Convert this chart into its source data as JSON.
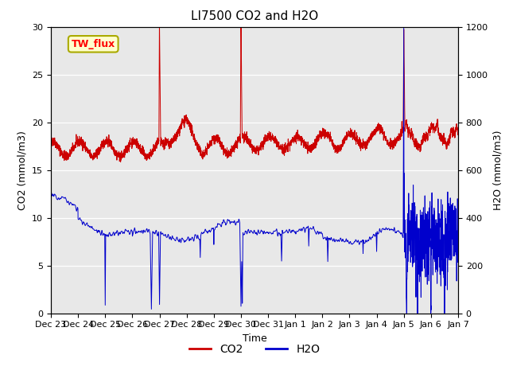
{
  "title": "LI7500 CO2 and H2O",
  "xlabel": "Time",
  "ylabel_left": "CO2 (mmol/m3)",
  "ylabel_right": "H2O (mmol/m3)",
  "ylim_left": [
    0,
    30
  ],
  "ylim_right": [
    0,
    1200
  ],
  "annotation": "TW_flux",
  "background_color": "#e8e8e8",
  "co2_color": "#cc0000",
  "h2o_color": "#0000cc",
  "x_tick_labels": [
    "Dec 23",
    "Dec 24",
    "Dec 25",
    "Dec 26",
    "Dec 27",
    "Dec 28",
    "Dec 29",
    "Dec 30",
    "Dec 31",
    "Jan 1",
    "Jan 2",
    "Jan 3",
    "Jan 4",
    "Jan 5",
    "Jan 6",
    "Jan 7"
  ],
  "n_points": 3360,
  "figsize": [
    6.4,
    4.8
  ],
  "dpi": 100
}
